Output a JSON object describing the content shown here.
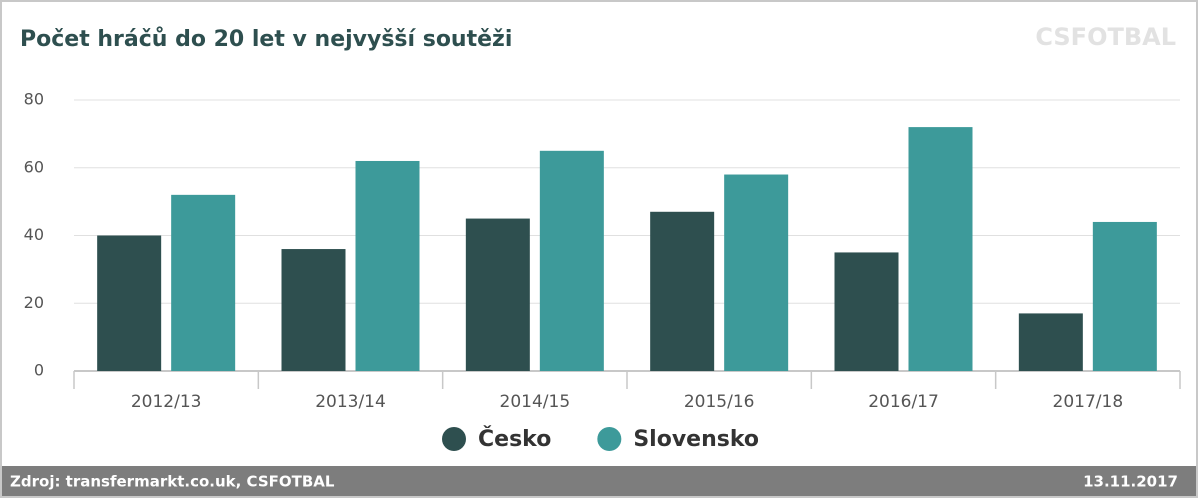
{
  "chart_data": {
    "type": "bar",
    "title": "Počet hráčů do 20 let v nejvyšší soutěži",
    "watermark": "CSFOTBAL",
    "categories": [
      "2012/13",
      "2013/14",
      "2014/15",
      "2015/16",
      "2016/17",
      "2017/18"
    ],
    "series": [
      {
        "name": "Česko",
        "color": "#2e4f4f",
        "values": [
          40,
          36,
          45,
          47,
          35,
          17
        ]
      },
      {
        "name": "Slovensko",
        "color": "#3d9a9a",
        "values": [
          52,
          62,
          65,
          58,
          72,
          44
        ]
      }
    ],
    "ylim": [
      0,
      80
    ],
    "yticks": [
      0,
      20,
      40,
      60,
      80
    ],
    "grid": true,
    "legend": "bottom",
    "source": "Zdroj: transfermarkt.co.uk, CSFOTBAL",
    "date": "13.11.2017"
  }
}
